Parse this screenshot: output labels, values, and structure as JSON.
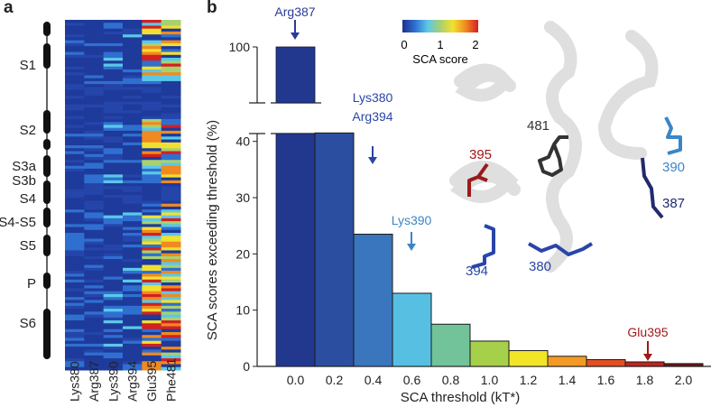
{
  "panel_a": {
    "letter": "a",
    "domains": [
      "S1",
      "S2",
      "S3a",
      "S3b",
      "S4",
      "S4-S5",
      "S5",
      "P",
      "S6"
    ],
    "columns": [
      "Lys380",
      "Arg387",
      "Lys390",
      "Arg394",
      "Glu395",
      "Phe481"
    ]
  },
  "panel_b": {
    "letter": "b",
    "colorbar": {
      "title": "SCA score",
      "ticks": [
        "0",
        "1",
        "2"
      ],
      "colors": [
        "#1f2f8f",
        "#2f6fd0",
        "#5bc8e8",
        "#a8d070",
        "#f2e030",
        "#f08a20",
        "#d42020"
      ]
    },
    "structure_labels": [
      {
        "text": "481",
        "color": "#333333"
      },
      {
        "text": "395",
        "color": "#a01818"
      },
      {
        "text": "390",
        "color": "#3a86c8"
      },
      {
        "text": "387",
        "color": "#1e2a6e"
      },
      {
        "text": "394",
        "color": "#2a45a8"
      },
      {
        "text": "380",
        "color": "#2a45a8"
      }
    ],
    "annotations": [
      {
        "text": "Arg387",
        "x": 0.0,
        "color": "#2a3a9a"
      },
      {
        "text": "Lys380",
        "x": 0.2,
        "color": "#2a45a8"
      },
      {
        "text": "Arg394",
        "x": 0.2,
        "color": "#2a45a8"
      },
      {
        "text": "Lys390",
        "x": 0.4,
        "color": "#3a86c8"
      },
      {
        "text": "Glu395",
        "x": 1.8,
        "color": "#a01818"
      }
    ]
  },
  "chart_data": {
    "type": "bar",
    "title": "",
    "xlabel": "SCA threshold (kT*)",
    "ylabel": "SCA scores exceeding threshold (%)",
    "categories": [
      "0.0",
      "0.2",
      "0.4",
      "0.6",
      "0.8",
      "1.0",
      "1.2",
      "1.4",
      "1.6",
      "1.8",
      "2.0"
    ],
    "values": [
      100,
      41.5,
      23.5,
      13,
      7.5,
      4.5,
      2.8,
      1.8,
      1.2,
      0.8,
      0.5
    ],
    "bar_colors": [
      "#22378e",
      "#2b4ea0",
      "#3a76bd",
      "#57c0e2",
      "#72c39a",
      "#a6cf4a",
      "#f2e528",
      "#f39a25",
      "#e24f22",
      "#c3231e",
      "#6e1518"
    ],
    "yticks": [
      0,
      10,
      20,
      30,
      40,
      100
    ],
    "ylim": [
      0,
      100
    ],
    "broken_axis": true,
    "grid": false
  }
}
